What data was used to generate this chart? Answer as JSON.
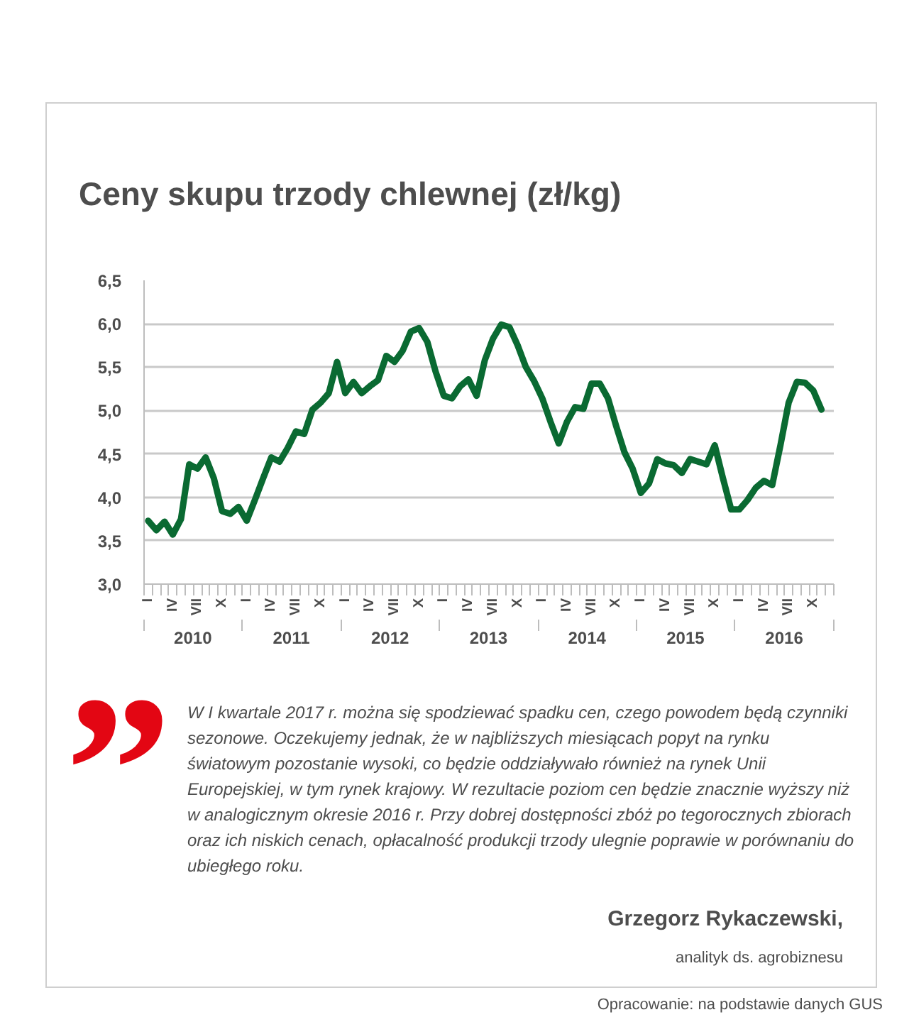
{
  "chart_data": {
    "type": "line",
    "title": "Ceny skupu trzody chlewnej (zł/kg)",
    "categories": [
      "I",
      null,
      null,
      "IV",
      null,
      null,
      "VII",
      null,
      null,
      "X",
      null,
      null,
      "I",
      null,
      null,
      "IV",
      null,
      null,
      "VII",
      null,
      null,
      "X",
      null,
      null,
      "I",
      null,
      null,
      "IV",
      null,
      null,
      "VII",
      null,
      null,
      "X",
      null,
      null,
      "I",
      null,
      null,
      "IV",
      null,
      null,
      "VII",
      null,
      null,
      "X",
      null,
      null,
      "I",
      null,
      null,
      "IV",
      null,
      null,
      "VII",
      null,
      null,
      "X",
      null,
      null,
      "I",
      null,
      null,
      "IV",
      null,
      null,
      "VII",
      null,
      null,
      "X",
      null,
      null,
      "I",
      null,
      null,
      "IV",
      null,
      null,
      "VII",
      null,
      null,
      "X",
      null,
      null
    ],
    "series": [
      {
        "color": "#0a6a32",
        "values": [
          3.73,
          3.62,
          3.72,
          3.57,
          3.75,
          4.38,
          4.33,
          4.46,
          4.22,
          3.84,
          3.81,
          3.89,
          3.73,
          3.97,
          4.22,
          4.46,
          4.41,
          4.57,
          4.76,
          4.73,
          5.01,
          5.09,
          5.2,
          5.56,
          5.2,
          5.33,
          5.2,
          5.28,
          5.35,
          5.63,
          5.56,
          5.69,
          5.91,
          5.95,
          5.79,
          5.45,
          5.17,
          5.14,
          5.28,
          5.36,
          5.17,
          5.58,
          5.83,
          5.99,
          5.96,
          5.75,
          5.5,
          5.34,
          5.14,
          4.87,
          4.62,
          4.87,
          5.04,
          5.02,
          5.31,
          5.31,
          5.14,
          4.82,
          4.52,
          4.33,
          4.05,
          4.16,
          4.44,
          4.39,
          4.37,
          4.28,
          4.44,
          4.41,
          4.38,
          4.6,
          4.22,
          3.86,
          3.86,
          3.97,
          4.11,
          4.19,
          4.14,
          4.6,
          5.09,
          5.33,
          5.32,
          5.23,
          5.01,
          null
        ]
      }
    ],
    "x2lim": [
      "2010-01",
      "2017-01"
    ],
    "x2ticks": [
      {
        "value": "2010-07",
        "label": "2010"
      },
      {
        "value": "2011-07",
        "label": "2011"
      },
      {
        "value": "2012-07",
        "label": "2012"
      },
      {
        "value": "2013-07",
        "label": "2013"
      },
      {
        "value": "2014-07",
        "label": "2014"
      },
      {
        "value": "2015-07",
        "label": "2015"
      },
      {
        "value": "2016-07",
        "label": "2016"
      },
      {
        "value": "2010-01",
        "label": null
      },
      {
        "value": "2011-01",
        "label": null
      },
      {
        "value": "2012-01",
        "label": null
      },
      {
        "value": "2013-01",
        "label": null
      },
      {
        "value": "2014-01",
        "label": null
      },
      {
        "value": "2015-01",
        "label": null
      },
      {
        "value": "2016-01",
        "label": null
      },
      {
        "value": "2017-01",
        "label": null
      }
    ],
    "ylim": [
      3.0,
      6.5
    ],
    "yticks": [
      {
        "value": 3.0,
        "label": "3,0"
      },
      {
        "value": 3.5,
        "label": "3,5"
      },
      {
        "value": 4.0,
        "label": "4,0"
      },
      {
        "value": 4.5,
        "label": "4,5"
      },
      {
        "value": 5.0,
        "label": "5,0"
      },
      {
        "value": 5.5,
        "label": "5,5"
      },
      {
        "value": 6.0,
        "label": "6,0"
      },
      {
        "value": 6.5,
        "label": "6,5"
      }
    ],
    "grid": "y",
    "annotations": [
      "”",
      "W I kwartale 2017 r. można się spodziewać spadku cen, czego powodem będą czynniki sezonowe. Oczekujemy jednak, że w najbliższych miesiącach popyt na rynku światowym pozostanie wysoki, co będzie oddziaływało również na rynek Unii Europejskiej, w tym rynek krajowy. W rezultacie poziom cen będzie znacznie wyższy niż w analogicznym okresie 2016 r. Przy dobrej dostępności zbóż po tegorocznych zbiorach oraz ich niskich cenach, opłacalność produkcji trzody ulegnie poprawie w porównaniu do ubiegłego roku.",
      "Grzegorz Rykaczewski,",
      "analityk ds. agrobiznesu",
      "Opracowanie: na podstawie danych GUS"
    ]
  }
}
